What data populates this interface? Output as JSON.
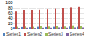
{
  "chart_data": {
    "type": "bar",
    "categories": [
      null,
      null,
      null,
      null,
      null,
      null,
      null,
      null,
      null
    ],
    "series": [
      {
        "name": "Series1",
        "color": "#4f81bd",
        "values": [
          6,
          7,
          6,
          8,
          7,
          8,
          7,
          9,
          8
        ]
      },
      {
        "name": "Series2",
        "color": "#c0504d",
        "values": [
          66,
          70,
          72,
          74,
          76,
          78,
          80,
          82,
          84
        ]
      },
      {
        "name": "Series3",
        "color": "#9bbb59",
        "values": [
          8,
          9,
          8,
          10,
          9,
          10,
          9,
          11,
          10
        ]
      },
      {
        "name": "Series4",
        "color": "#8064a2",
        "values": [
          3,
          4,
          3,
          4,
          4,
          5,
          4,
          5,
          5
        ]
      }
    ],
    "ylim": [
      0,
      100
    ],
    "yticks": [
      0,
      20,
      40,
      60,
      80,
      100
    ],
    "grid": true,
    "legend": "bottom"
  }
}
